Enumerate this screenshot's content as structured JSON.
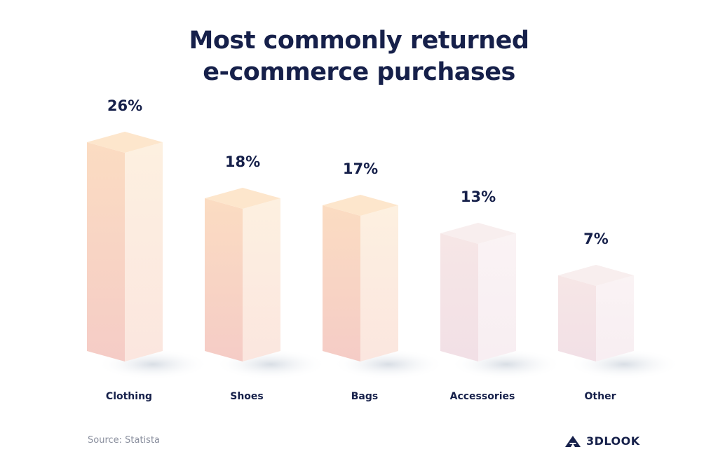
{
  "chart_data": {
    "type": "bar",
    "title_line1": "Most commonly returned",
    "title_line2": "e-commerce purchases",
    "categories": [
      "Clothing",
      "Shoes",
      "Bags",
      "Accessories",
      "Other"
    ],
    "values": [
      26,
      18,
      17,
      13,
      7
    ],
    "value_labels": [
      "26%",
      "18%",
      "17%",
      "13%",
      "7%"
    ],
    "unit": "%",
    "xlabel": "",
    "ylabel": "",
    "grid": false,
    "colors": {
      "text": "#16204a",
      "bar_top": "#fde8cf",
      "bar_left_top": "#fbdcc4",
      "bar_left_bottom": "#f5cdc6",
      "bar_right": "#fcece2"
    }
  },
  "footer": {
    "source": "Source: Statista",
    "brand": "3DLOOK"
  }
}
